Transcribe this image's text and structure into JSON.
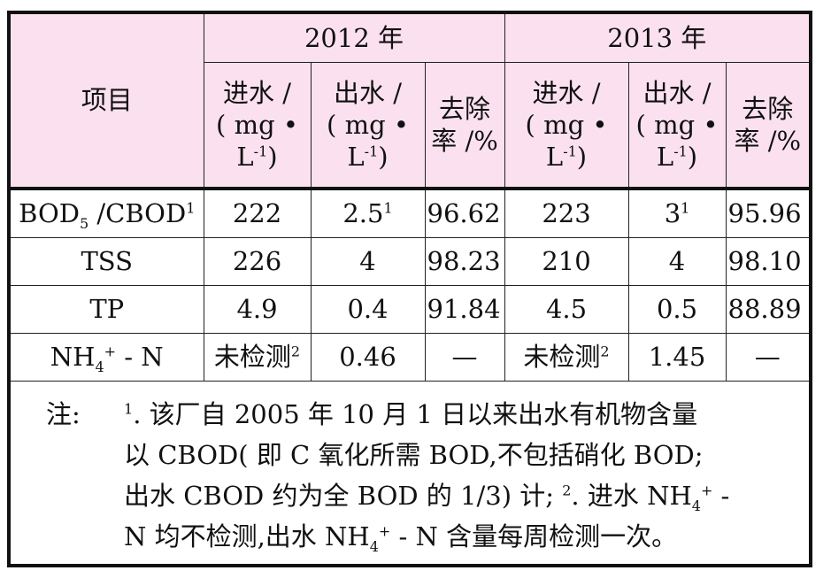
{
  "header": {
    "item": "项目",
    "years": [
      "2012 年",
      "2013 年"
    ],
    "influent": [
      "进水 /",
      "( mg •",
      "L",
      "-1",
      ")"
    ],
    "effluent": [
      "出水 /",
      "( mg •",
      "L",
      "-1",
      ")"
    ],
    "removal": [
      "去除",
      "率 /%"
    ]
  },
  "rows": [
    {
      "item": "BOD",
      "item_sub": "5",
      "item_rest": " /CBOD",
      "item_sup": "1",
      "v": [
        "222",
        "2.5",
        "96.62",
        "223",
        "3",
        "95.96"
      ],
      "sups": [
        "",
        "1",
        "",
        "",
        "1",
        ""
      ]
    },
    {
      "item": "TSS",
      "item_sub": "",
      "item_rest": "",
      "item_sup": "",
      "v": [
        "226",
        "4",
        "98.23",
        "210",
        "4",
        "98.10"
      ],
      "sups": [
        "",
        "",
        "",
        "",
        "",
        ""
      ]
    },
    {
      "item": "TP",
      "item_sub": "",
      "item_rest": "",
      "item_sup": "",
      "v": [
        "4.9",
        "0.4",
        "91.84",
        "4.5",
        "0.5",
        "88.89"
      ],
      "sups": [
        "",
        "",
        "",
        "",
        "",
        ""
      ]
    },
    {
      "item": "NH",
      "item_sub": "4",
      "item_rest": " - N",
      "item_sup": "+",
      "v": [
        "未检测",
        "0.46",
        "—",
        "未检测",
        "1.45",
        "—"
      ],
      "sups": [
        "2",
        "",
        "",
        "2",
        "",
        ""
      ]
    }
  ],
  "note": {
    "label": "注:",
    "lines": [
      "1. 该厂自 2005 年 10 月 1 日以来出水有机物含量",
      "以 CBOD( 即 C 氧化所需 BOD,不包括硝化 BOD;",
      "出水 CBOD 约为全 BOD 的 1/3) 计; 2. 进水 NH4+ -",
      "N 均不检测,出水 NH4+ - N 含量每周检测一次。"
    ]
  }
}
